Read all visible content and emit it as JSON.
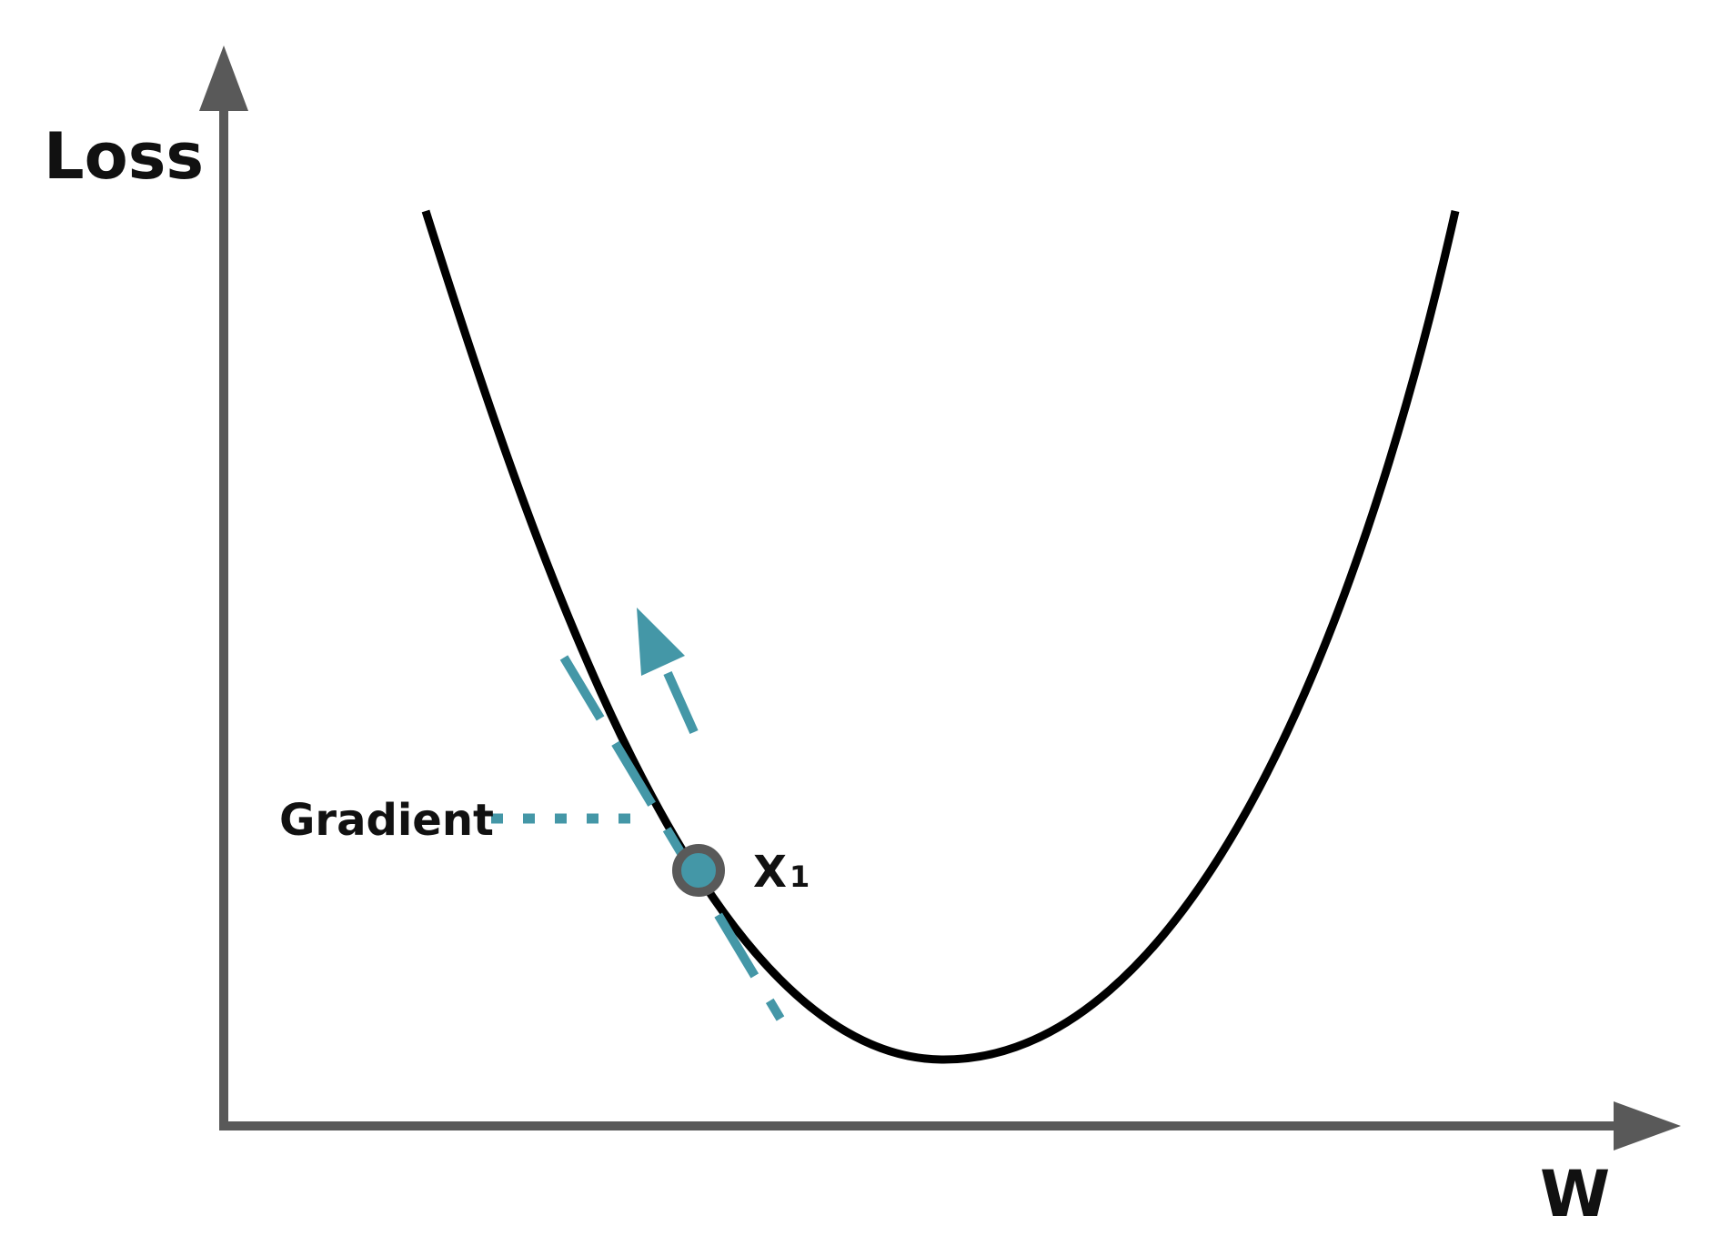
{
  "axes": {
    "y_label": "Loss",
    "x_label": "W"
  },
  "annotations": {
    "gradient_label": "Gradient",
    "point_label": "X",
    "point_subscript": "1"
  },
  "colors": {
    "axis": "#595959",
    "curve": "#000000",
    "accent": "#4497a7",
    "point_border": "#595959",
    "background": "#ffffff"
  },
  "icons": {
    "y_axis_head": "arrow-up-icon",
    "x_axis_head": "arrow-right-icon",
    "direction": "arrow-up-left-icon"
  }
}
